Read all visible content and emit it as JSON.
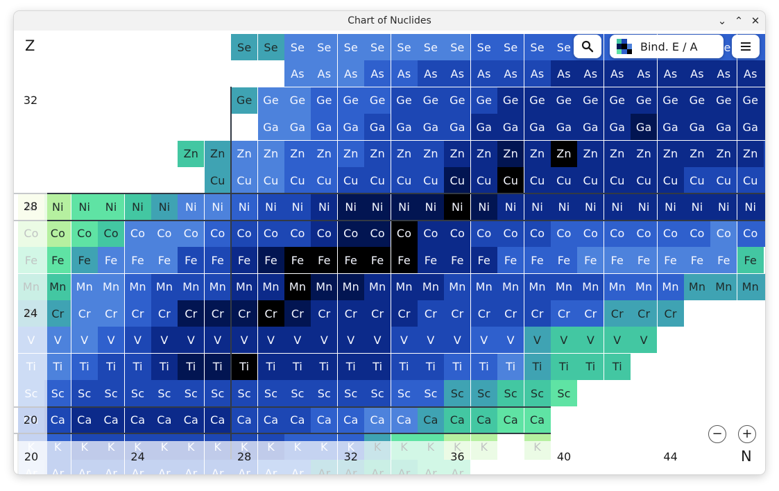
{
  "window": {
    "title": "Chart of Nuclides",
    "controls": [
      "⌄",
      "⌃",
      "✕"
    ]
  },
  "toolbar": {
    "search_icon": "magnifier-icon",
    "mode_label": "Bind. E / A",
    "menu_icon": "hamburger-icon"
  },
  "zoom": {
    "out": "−",
    "in": "+"
  },
  "axes": {
    "z_letter": "Z",
    "n_letter": "N",
    "z_labels": [
      {
        "z": 32,
        "text": "32"
      },
      {
        "z": 28,
        "text": "28"
      },
      {
        "z": 24,
        "text": "24"
      },
      {
        "z": 20,
        "text": "20"
      }
    ],
    "n_labels": [
      {
        "n": 20,
        "text": "20"
      },
      {
        "n": 24,
        "text": "24"
      },
      {
        "n": 28,
        "text": "28"
      },
      {
        "n": 32,
        "text": "32"
      },
      {
        "n": 36,
        "text": "36"
      },
      {
        "n": 40,
        "text": "40"
      },
      {
        "n": 44,
        "text": "44"
      }
    ]
  },
  "colors": {
    "scale": [
      "#000000",
      "#021552",
      "#0c2a8a",
      "#1d47b4",
      "#2f60cd",
      "#4d82dc",
      "#3fa3b3",
      "#43c7a2",
      "#5fe3a4",
      "#b6f0a0",
      "#e9f7bd"
    ],
    "magic_line": "#333a44",
    "frame": "#f2f2f2"
  },
  "magic_numbers": {
    "z": [
      20,
      28
    ],
    "n": [
      20,
      28
    ]
  },
  "nuclide_rows": [
    {
      "z": 34,
      "symbol": "Se",
      "n_start": 28,
      "levels": [
        6,
        6,
        5,
        5,
        5,
        5,
        5,
        5,
        5,
        4,
        4,
        4,
        4,
        4,
        4,
        4,
        4,
        4,
        4,
        4,
        4,
        4,
        4,
        4,
        4,
        4,
        4,
        4
      ]
    },
    {
      "z": 33,
      "symbol": "As",
      "n_start": 30,
      "levels": [
        5,
        5,
        5,
        4,
        4,
        3,
        3,
        3,
        3,
        3,
        2,
        2,
        2,
        2,
        2,
        2,
        2,
        2,
        2,
        2,
        2,
        2,
        2,
        2,
        2,
        2,
        2,
        2
      ]
    },
    {
      "z": 32,
      "symbol": "Ge",
      "n_start": 28,
      "levels": [
        6,
        5,
        5,
        4,
        4,
        4,
        3,
        3,
        3,
        3,
        2,
        2,
        2,
        2,
        2,
        2,
        2,
        2,
        2,
        2,
        2,
        1,
        2,
        2,
        2,
        2,
        2,
        2
      ]
    },
    {
      "z": 31,
      "symbol": "Ga",
      "n_start": 29,
      "levels": [
        5,
        5,
        4,
        4,
        3,
        3,
        3,
        3,
        2,
        2,
        2,
        2,
        2,
        2,
        1,
        2,
        2,
        2,
        2,
        2,
        2,
        2,
        2,
        2,
        2,
        2,
        2,
        2
      ]
    },
    {
      "z": 30,
      "symbol": "Zn",
      "n_start": 26,
      "levels": [
        7,
        6,
        5,
        5,
        4,
        4,
        4,
        3,
        3,
        3,
        2,
        2,
        1,
        2,
        0,
        2,
        2,
        2,
        2,
        2,
        2,
        2,
        3,
        3,
        3,
        3,
        3,
        3
      ]
    },
    {
      "z": 29,
      "symbol": "Cu",
      "n_start": 27,
      "levels": [
        6,
        5,
        5,
        4,
        4,
        3,
        3,
        3,
        3,
        1,
        2,
        0,
        2,
        2,
        2,
        2,
        2,
        2,
        3,
        3,
        3,
        3,
        3,
        3,
        3,
        3,
        3,
        3
      ]
    },
    {
      "z": 28,
      "symbol": "Ni",
      "n_start": 20,
      "levels": [
        10,
        9,
        8,
        8,
        7,
        6,
        5,
        5,
        4,
        3,
        3,
        2,
        1,
        1,
        1,
        1,
        0,
        1,
        2,
        2,
        2,
        2,
        2,
        2,
        2,
        2,
        2,
        2,
        2,
        2,
        2,
        2,
        2,
        2
      ]
    },
    {
      "z": 27,
      "symbol": "Co",
      "n_start": 20,
      "levels": [
        9,
        9,
        8,
        7,
        5,
        5,
        5,
        4,
        3,
        3,
        3,
        2,
        1,
        1,
        0,
        2,
        2,
        3,
        3,
        3,
        4,
        4,
        4,
        4,
        4,
        4,
        5,
        4,
        4,
        4,
        4
      ]
    },
    {
      "z": 26,
      "symbol": "Fe",
      "n_start": 20,
      "levels": [
        8,
        8,
        6,
        5,
        5,
        5,
        3,
        3,
        2,
        1,
        0,
        0,
        0,
        0,
        0,
        2,
        2,
        2,
        4,
        4,
        4,
        5,
        5,
        5,
        5,
        5,
        5,
        7
      ]
    },
    {
      "z": 25,
      "symbol": "Mn",
      "n_start": 20,
      "levels": [
        7,
        7,
        5,
        5,
        4,
        3,
        3,
        3,
        2,
        2,
        0,
        1,
        1,
        2,
        2,
        2,
        3,
        3,
        3,
        3,
        3,
        3,
        4,
        4,
        4,
        6,
        6,
        6,
        6
      ]
    },
    {
      "z": 24,
      "symbol": "Cr",
      "n_start": 20,
      "levels": [
        6,
        6,
        5,
        5,
        4,
        3,
        1,
        1,
        1,
        0,
        1,
        2,
        2,
        2,
        2,
        3,
        3,
        3,
        3,
        3,
        4,
        4,
        6,
        6,
        6
      ]
    },
    {
      "z": 23,
      "symbol": "V",
      "n_start": 20,
      "levels": [
        5,
        5,
        5,
        4,
        3,
        2,
        2,
        2,
        2,
        2,
        2,
        2,
        2,
        2,
        3,
        3,
        3,
        4,
        4,
        6,
        7,
        7,
        7,
        7
      ]
    },
    {
      "z": 22,
      "symbol": "Ti",
      "n_start": 20,
      "levels": [
        5,
        5,
        4,
        3,
        3,
        2,
        1,
        1,
        0,
        2,
        2,
        2,
        2,
        2,
        3,
        3,
        4,
        4,
        5,
        6,
        7,
        7,
        7
      ]
    },
    {
      "z": 21,
      "symbol": "Sc",
      "n_start": 20,
      "levels": [
        5,
        4,
        3,
        3,
        3,
        3,
        3,
        3,
        3,
        3,
        3,
        3,
        3,
        3,
        4,
        4,
        6,
        6,
        7,
        7,
        8
      ]
    },
    {
      "z": 20,
      "symbol": "Ca",
      "n_start": 20,
      "levels": [
        4,
        3,
        2,
        2,
        2,
        2,
        2,
        2,
        3,
        3,
        3,
        4,
        4,
        5,
        5,
        6,
        7,
        7,
        8,
        8
      ]
    },
    {
      "z": 19,
      "symbol": "K",
      "n_start": 20,
      "levels": [
        4,
        4,
        3,
        3,
        3,
        3,
        3,
        3,
        3,
        3,
        4,
        4,
        4,
        6,
        8,
        8,
        9,
        9,
        -1,
        9
      ]
    },
    {
      "z": 18,
      "symbol": "Ar",
      "n_start": 20,
      "levels": [
        5,
        4,
        4,
        4,
        4,
        4,
        4,
        4,
        4,
        5,
        5,
        6,
        6,
        7,
        7,
        8,
        8
      ]
    }
  ]
}
